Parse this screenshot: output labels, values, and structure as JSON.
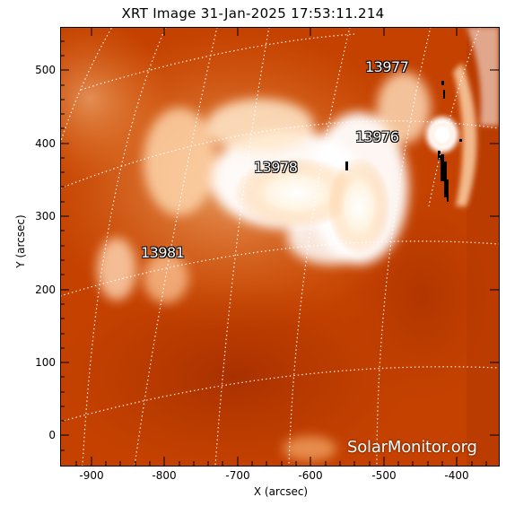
{
  "title": "XRT Image 31-Jan-2025 17:53:11.214",
  "axes": {
    "xlabel": "X (arcsec)",
    "ylabel": "Y (arcsec)",
    "xticks": [
      "-900",
      "-800",
      "-700",
      "-600",
      "-500",
      "-400"
    ],
    "yticks": [
      "500",
      "400",
      "300",
      "200",
      "100",
      "0"
    ]
  },
  "regions": [
    "13977",
    "13976",
    "13978",
    "13981"
  ],
  "watermark": "SolarMonitor.org",
  "colors": {
    "background": "#c44100",
    "bright": "#ffffff",
    "grid": "#ffffff",
    "dark_spot": "#000000"
  },
  "icons": [
    "sun-image",
    "heliographic-grid"
  ]
}
